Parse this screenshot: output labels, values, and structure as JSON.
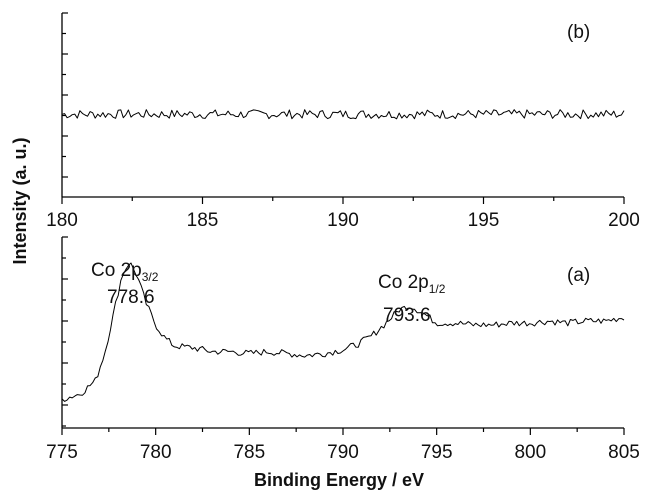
{
  "chart_data": [
    {
      "panel": "(b)",
      "type": "line",
      "xlim": [
        180,
        200
      ],
      "ylim": [
        0,
        1
      ],
      "x_ticks": [
        180,
        185,
        190,
        195,
        200
      ],
      "xlabel": "",
      "ylabel": "Intensity (a. u.)",
      "grid": false,
      "series": [
        {
          "x": [
            180,
            200
          ],
          "y": [
            0.45,
            0.45
          ],
          "noise_amplitude": 0.025
        }
      ]
    },
    {
      "panel": "(a)",
      "type": "line",
      "xlim": [
        775,
        805
      ],
      "ylim": [
        0,
        1
      ],
      "x_ticks": [
        775,
        780,
        785,
        790,
        795,
        800,
        805
      ],
      "xlabel": "Binding Energy / eV",
      "ylabel": "Intensity (a. u.)",
      "grid": false,
      "annotations": [
        {
          "name": "Co 2p",
          "sub": "3/2",
          "value": "778.6"
        },
        {
          "name": "Co 2p",
          "sub": "1/2",
          "value": "793.6"
        }
      ],
      "series": [
        {
          "x": [
            775.0,
            776.0,
            776.8,
            777.3,
            777.8,
            778.2,
            778.6,
            779.0,
            779.5,
            780.0,
            780.5,
            781.0,
            782.0,
            783.0,
            784.0,
            785.0,
            786.0,
            787.0,
            788.0,
            789.0,
            790.0,
            790.8,
            791.5,
            792.3,
            793.0,
            793.6,
            794.3,
            795.0,
            796.0,
            797.0,
            798.0,
            799.0,
            800.0,
            801.0,
            802.0,
            803.0,
            804.0,
            805.0
          ],
          "y": [
            0.15,
            0.18,
            0.25,
            0.4,
            0.62,
            0.8,
            0.87,
            0.8,
            0.65,
            0.54,
            0.47,
            0.43,
            0.42,
            0.4,
            0.4,
            0.39,
            0.4,
            0.39,
            0.38,
            0.39,
            0.41,
            0.44,
            0.48,
            0.55,
            0.62,
            0.64,
            0.6,
            0.55,
            0.55,
            0.54,
            0.54,
            0.55,
            0.55,
            0.56,
            0.55,
            0.56,
            0.56,
            0.58
          ],
          "noise_amplitude": 0.018
        }
      ]
    }
  ],
  "labels": {
    "panel_b": "(b)",
    "panel_a": "(a)",
    "ylabel": "Intensity (a. u.)",
    "xlabel": "Binding Energy / eV",
    "peak1_name": "Co 2p",
    "peak1_sub": "3/2",
    "peak1_value": "778.6",
    "peak2_name": "Co 2p",
    "peak2_sub": "1/2",
    "peak2_value": "793.6"
  }
}
